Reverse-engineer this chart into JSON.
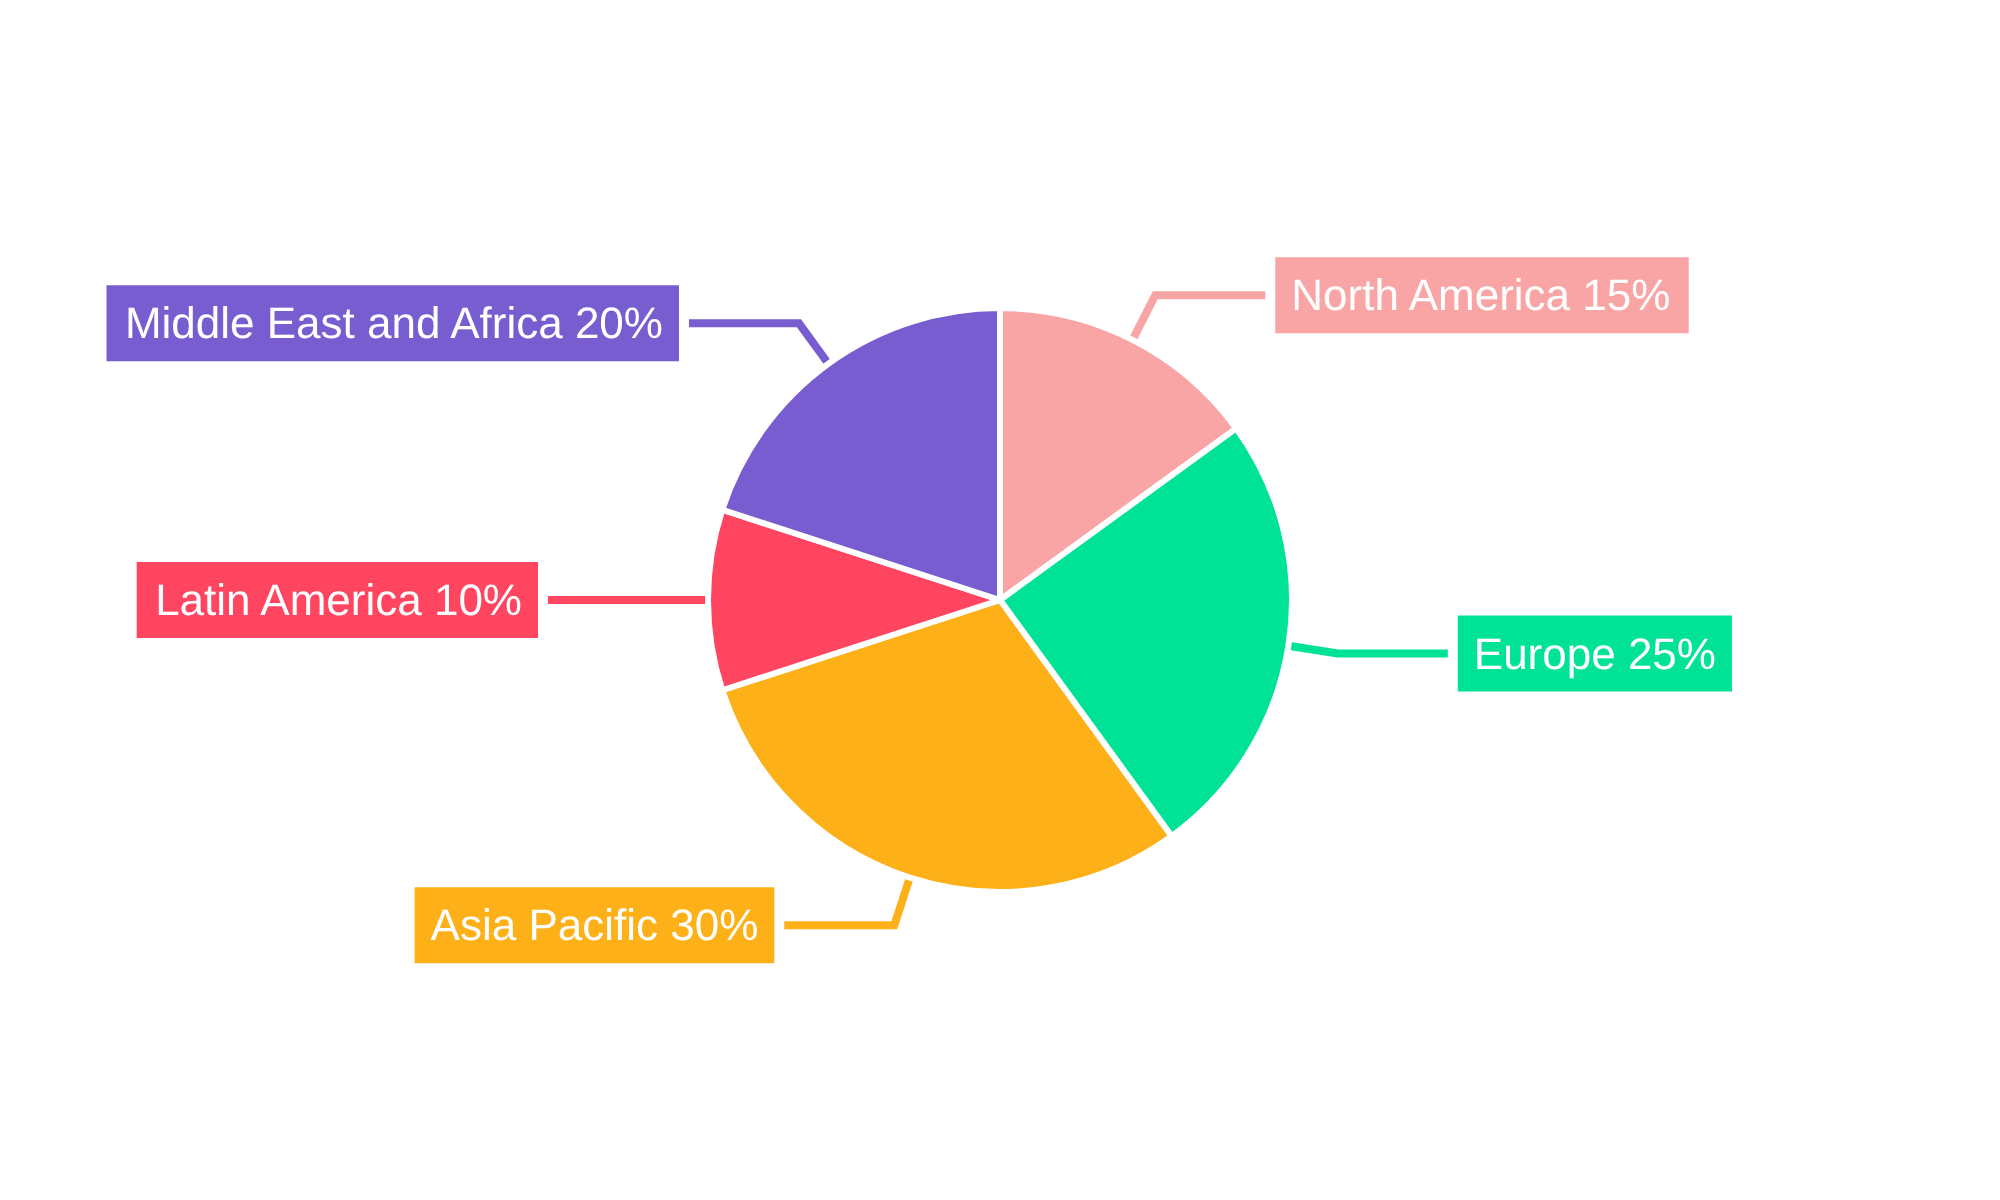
{
  "chart_data": {
    "type": "pie",
    "categories": [
      "North America",
      "Europe",
      "Asia Pacific",
      "Latin America",
      "Middle East and Africa"
    ],
    "values": [
      15,
      25,
      30,
      10,
      20
    ],
    "colors": [
      "#f9a5a6",
      "#00e396",
      "#feb019",
      "#ff4560",
      "#775dd0"
    ],
    "value_labels": [
      "15%",
      "25%",
      "30%",
      "10%",
      "20%"
    ],
    "legend": false
  }
}
